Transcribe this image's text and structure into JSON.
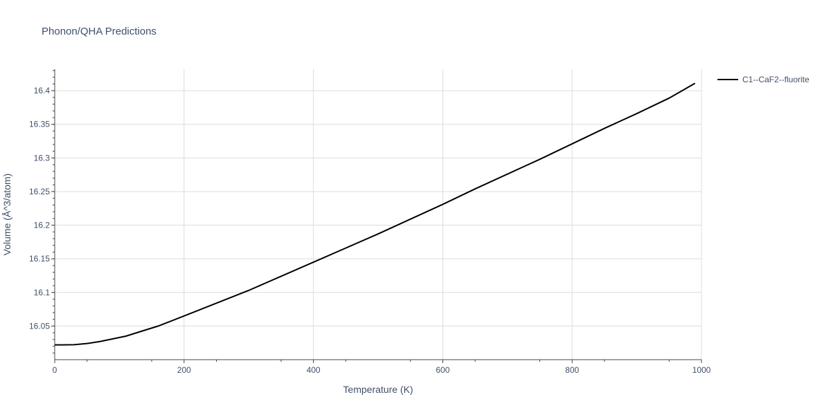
{
  "chart_data": {
    "type": "line",
    "title": "Phonon/QHA Predictions",
    "xlabel": "Temperature (K)",
    "ylabel": "Volume (Å^3/atom)",
    "xlim": [
      0,
      1000
    ],
    "ylim": [
      16.0,
      16.432
    ],
    "x_ticks": [
      0,
      200,
      400,
      600,
      800,
      1000
    ],
    "y_ticks": [
      16.05,
      16.1,
      16.15,
      16.2,
      16.25,
      16.3,
      16.35,
      16.4
    ],
    "x_tick_labels": [
      "0",
      "200",
      "400",
      "600",
      "800",
      "1000"
    ],
    "y_tick_labels": [
      "16.05",
      "16.1",
      "16.15",
      "16.2",
      "16.25",
      "16.3",
      "16.35",
      "16.4"
    ],
    "grid": true,
    "legend_position": "top-right",
    "series": [
      {
        "name": "C1--CaF2--fluorite",
        "color": "#000000",
        "x": [
          0,
          10,
          30,
          50,
          70,
          90,
          110,
          130,
          160,
          200,
          250,
          300,
          350,
          400,
          450,
          500,
          550,
          600,
          650,
          700,
          750,
          800,
          850,
          900,
          950,
          990
        ],
        "y": [
          16.022,
          16.022,
          16.0223,
          16.024,
          16.027,
          16.031,
          16.035,
          16.041,
          16.05,
          16.065,
          16.084,
          16.103,
          16.124,
          16.145,
          16.166,
          16.187,
          16.209,
          16.231,
          16.254,
          16.276,
          16.298,
          16.321,
          16.344,
          16.366,
          16.389,
          16.411
        ]
      }
    ]
  }
}
